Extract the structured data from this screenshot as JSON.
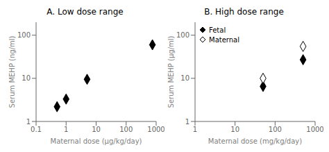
{
  "chart_data": [
    {
      "type": "scatter",
      "title": "A. Low dose range",
      "xlabel": "Maternal dose (μg/kg/day)",
      "ylabel": "Serum MEHP (ng/ml)",
      "log": true,
      "x": [
        0.5,
        1.0,
        5.0,
        750
      ],
      "values": [
        2.2,
        3.3,
        9.5,
        60
      ],
      "color": "black",
      "marker": "diamond",
      "xlim": [
        0.1,
        1000
      ],
      "ylim": [
        1,
        200
      ],
      "xticks": [
        0.1,
        1,
        10,
        100,
        1000
      ],
      "yticks": [
        1,
        10,
        100
      ]
    },
    {
      "type": "scatter",
      "title": "B.  High dose range",
      "xlabel": "Maternal dose (mg/kg/day)",
      "ylabel": "Serum MEHP (μg/ml)",
      "log": true,
      "x": [
        50,
        500
      ],
      "series": [
        {
          "name": "Fetal",
          "values": [
            6.5,
            27
          ],
          "color": "black",
          "marker": "diamond"
        },
        {
          "name": "Maternal",
          "values": [
            10.0,
            55
          ],
          "color": "black",
          "marker": "diamond_open"
        }
      ],
      "xlim": [
        1,
        1000
      ],
      "ylim": [
        1,
        200
      ],
      "xticks": [
        1,
        10,
        100,
        1000
      ],
      "yticks": [
        1,
        10,
        100
      ],
      "legend": "upper left"
    }
  ]
}
